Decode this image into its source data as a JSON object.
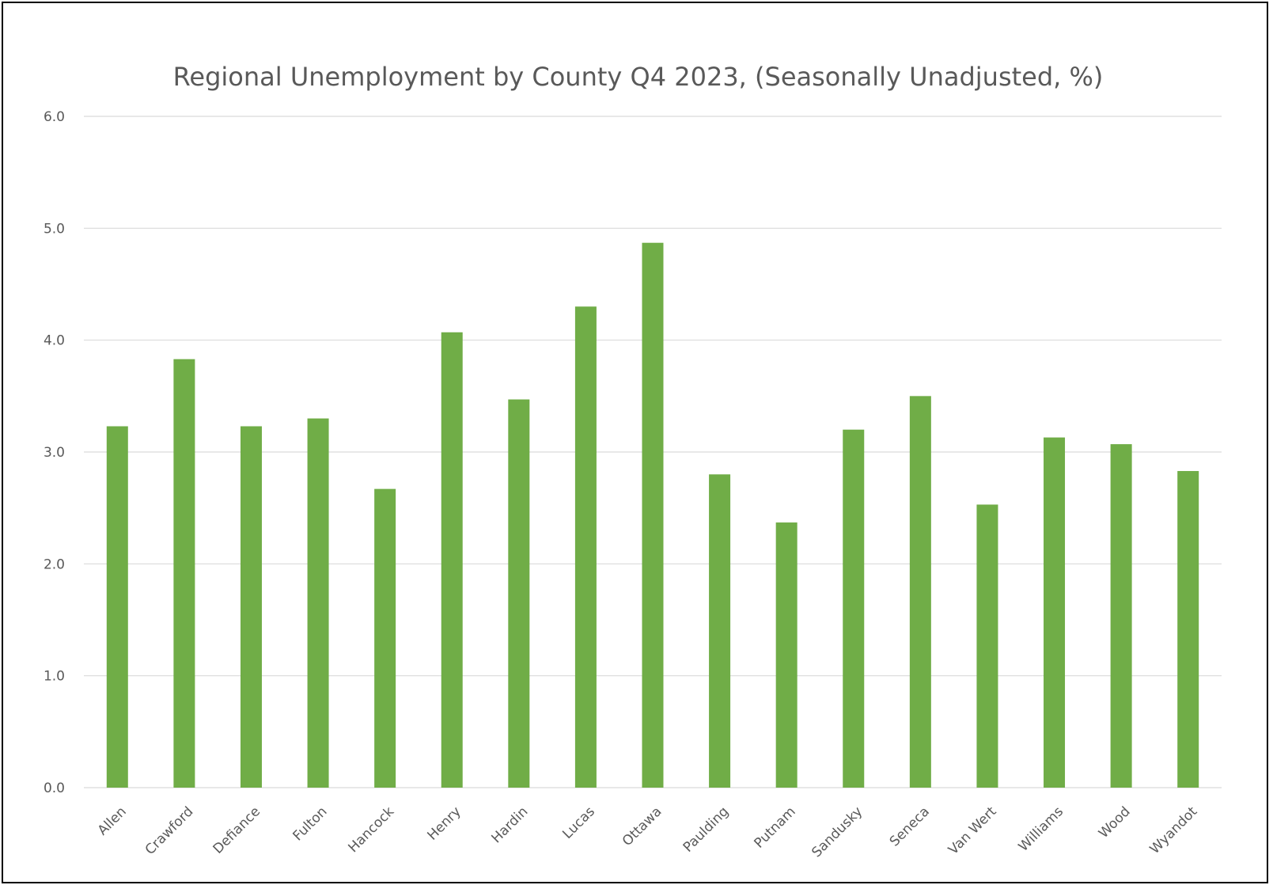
{
  "chart_data": {
    "type": "bar",
    "title": "Regional Unemployment by County Q4 2023, (Seasonally Unadjusted, %)",
    "xlabel": "",
    "ylabel": "",
    "ylim": [
      0,
      6
    ],
    "yticks": [
      "0.0",
      "1.0",
      "2.0",
      "3.0",
      "4.0",
      "5.0",
      "6.0"
    ],
    "grid": true,
    "legend": "none",
    "bar_color": "#70AD47",
    "categories": [
      "Allen",
      "Crawford",
      "Defiance",
      "Fulton",
      "Hancock",
      "Henry",
      "Hardin",
      "Lucas",
      "Ottawa",
      "Paulding",
      "Putnam",
      "Sandusky",
      "Seneca",
      "Van Wert",
      "Williams",
      "Wood",
      "Wyandot"
    ],
    "values": [
      3.23,
      3.83,
      3.23,
      3.3,
      2.67,
      4.07,
      3.47,
      4.3,
      4.87,
      2.8,
      2.37,
      3.2,
      3.5,
      2.53,
      3.13,
      3.07,
      2.83
    ]
  }
}
